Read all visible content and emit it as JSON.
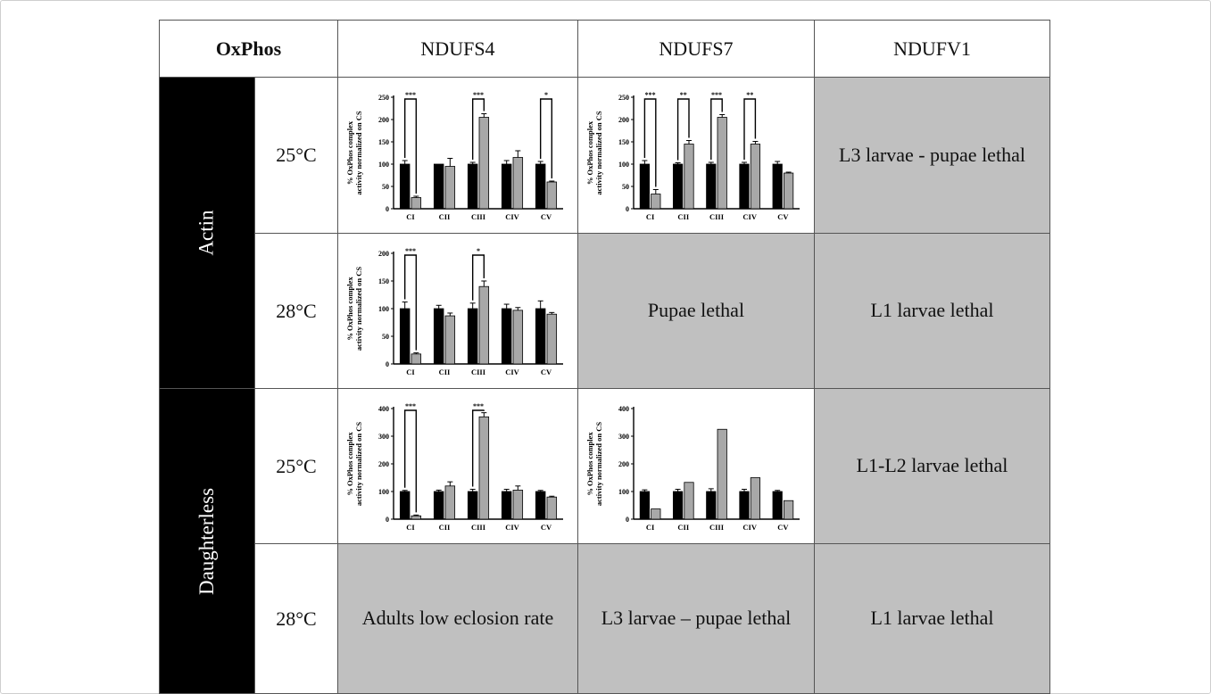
{
  "table": {
    "corner": "OxPhos",
    "columns": [
      "NDUFS4",
      "NDUFS7",
      "NDUFV1"
    ],
    "groups": [
      "Actin",
      "Daughterless"
    ],
    "temps": [
      "25°C",
      "28°C",
      "25°C",
      "28°C"
    ],
    "texts": {
      "actin_25_ndufv1": "L3 larvae - pupae lethal",
      "actin_28_ndufs7": "Pupae lethal",
      "actin_28_ndufv1": "L1 larvae lethal",
      "da_25_ndufv1": "L1-L2 larvae lethal",
      "da_28_ndufs4": "Adults low eclosion rate",
      "da_28_ndufs7": "L3 larvae – pupae lethal",
      "da_28_ndufv1": "L1 larvae lethal"
    }
  },
  "chart_data": [
    {
      "id": "actin-25-ndufs4",
      "type": "bar",
      "ylabel": "% OxPhos complex activity normalized on CS",
      "categories": [
        "CI",
        "CII",
        "CIII",
        "CIV",
        "CV"
      ],
      "ylim": [
        0,
        250
      ],
      "yticks": [
        0,
        50,
        100,
        150,
        200,
        250
      ],
      "series": [
        {
          "color": "#000000",
          "values": [
            100,
            100,
            100,
            100,
            100
          ],
          "errors": [
            8,
            0,
            4,
            8,
            6
          ]
        },
        {
          "color": "#a8a8a8",
          "values": [
            25,
            95,
            205,
            115,
            60
          ],
          "errors": [
            3,
            18,
            8,
            15,
            2
          ]
        }
      ],
      "annotations": [
        {
          "category": 0,
          "label": "***"
        },
        {
          "category": 2,
          "label": "***"
        },
        {
          "category": 4,
          "label": "*"
        }
      ]
    },
    {
      "id": "actin-25-ndufs7",
      "type": "bar",
      "ylabel": "% OxPhos complex activity normalized on CS",
      "categories": [
        "CI",
        "CII",
        "CIII",
        "CIV",
        "CV"
      ],
      "ylim": [
        0,
        250
      ],
      "yticks": [
        0,
        50,
        100,
        150,
        200,
        250
      ],
      "series": [
        {
          "color": "#000000",
          "values": [
            100,
            100,
            100,
            100,
            100
          ],
          "errors": [
            8,
            3,
            4,
            4,
            6
          ]
        },
        {
          "color": "#a8a8a8",
          "values": [
            33,
            145,
            205,
            145,
            80
          ],
          "errors": [
            10,
            8,
            6,
            6,
            2
          ]
        }
      ],
      "annotations": [
        {
          "category": 0,
          "label": "***"
        },
        {
          "category": 1,
          "label": "**"
        },
        {
          "category": 2,
          "label": "***"
        },
        {
          "category": 3,
          "label": "**"
        }
      ]
    },
    {
      "id": "actin-28-ndufs4",
      "type": "bar",
      "ylabel": "% OxPhos complex activity normalized on CS",
      "categories": [
        "CI",
        "CII",
        "CIII",
        "CIV",
        "CV"
      ],
      "ylim": [
        0,
        200
      ],
      "yticks": [
        0,
        50,
        100,
        150,
        200
      ],
      "series": [
        {
          "color": "#000000",
          "values": [
            100,
            100,
            100,
            100,
            100
          ],
          "errors": [
            12,
            6,
            10,
            8,
            14
          ]
        },
        {
          "color": "#a8a8a8",
          "values": [
            18,
            87,
            140,
            97,
            90
          ],
          "errors": [
            2,
            5,
            10,
            5,
            3
          ]
        }
      ],
      "annotations": [
        {
          "category": 0,
          "label": "***"
        },
        {
          "category": 2,
          "label": "*"
        }
      ]
    },
    {
      "id": "da-25-ndufs4",
      "type": "bar",
      "ylabel": "% OxPhos complex activity normalized on CS",
      "categories": [
        "CI",
        "CII",
        "CIII",
        "CIV",
        "CV"
      ],
      "ylim": [
        0,
        400
      ],
      "yticks": [
        0,
        100,
        200,
        300,
        400
      ],
      "series": [
        {
          "color": "#000000",
          "values": [
            100,
            100,
            100,
            100,
            100
          ],
          "errors": [
            4,
            5,
            8,
            8,
            4
          ]
        },
        {
          "color": "#a8a8a8",
          "values": [
            12,
            120,
            370,
            105,
            80
          ],
          "errors": [
            3,
            15,
            15,
            15,
            3
          ]
        }
      ],
      "annotations": [
        {
          "category": 0,
          "label": "***"
        },
        {
          "category": 2,
          "label": "***"
        }
      ]
    },
    {
      "id": "da-25-ndufs7",
      "type": "bar",
      "ylabel": "% OxPhos complex activity normalized on CS",
      "categories": [
        "CI",
        "CII",
        "CIII",
        "CIV",
        "CV"
      ],
      "ylim": [
        0,
        400
      ],
      "yticks": [
        0,
        100,
        200,
        300,
        400
      ],
      "series": [
        {
          "color": "#000000",
          "values": [
            100,
            100,
            100,
            100,
            100
          ],
          "errors": [
            6,
            8,
            10,
            8,
            4
          ]
        },
        {
          "color": "#a8a8a8",
          "values": [
            37,
            133,
            325,
            150,
            67
          ],
          "errors": [
            0,
            0,
            0,
            0,
            0
          ]
        }
      ],
      "annotations": []
    }
  ]
}
